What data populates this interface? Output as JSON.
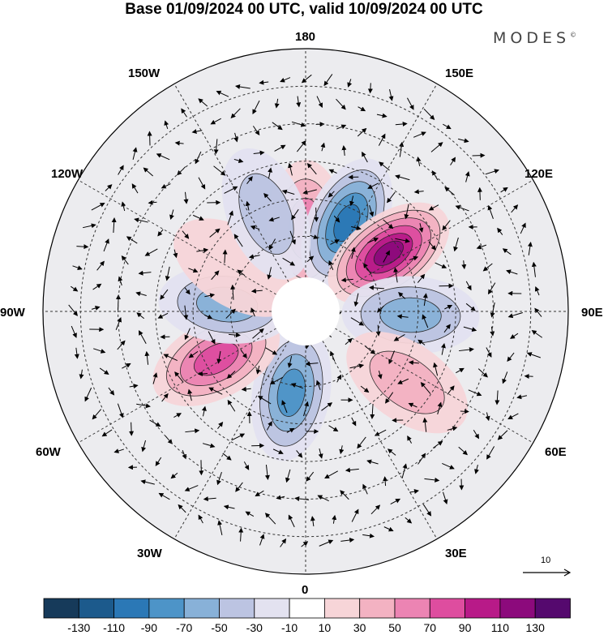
{
  "title": "Base 01/09/2024 00 UTC, valid 10/09/2024 00 UTC",
  "brand": {
    "name": "MODES",
    "mark": "©"
  },
  "longitude_labels": {
    "top": "180",
    "top_left": "150W",
    "top_right": "150E",
    "upper_left": "120W",
    "upper_right": "120E",
    "left": "90W",
    "right": "90E",
    "lower_left": "60W",
    "lower_right": "60E",
    "bottom_left": "30W",
    "bottom_right": "30E",
    "bottom": "0"
  },
  "reference_vector": {
    "label": "10"
  },
  "colorbar": {
    "colors": [
      "#163a5a",
      "#1c5a8c",
      "#2b78b6",
      "#4d94c8",
      "#88b1d8",
      "#bcc4e2",
      "#e3e2f0",
      "#ffffff",
      "#f7d5d8",
      "#f3b2c2",
      "#ec84b3",
      "#de4d9f",
      "#b81a88",
      "#8c0a7c",
      "#55096e"
    ],
    "tick_labels": [
      "-130",
      "-110",
      "-90",
      "-70",
      "-50",
      "-30",
      "-10",
      "10",
      "30",
      "50",
      "70",
      "90",
      "110",
      "130"
    ]
  },
  "anomalies": [
    {
      "name": "pos-180",
      "value": 60,
      "lon": 180,
      "colat": 22
    },
    {
      "name": "neg-160E",
      "value": -100,
      "lon": 155,
      "colat": 26
    },
    {
      "name": "pos-130E",
      "value": 120,
      "lon": 125,
      "colat": 27
    },
    {
      "name": "neg-90E",
      "value": -75,
      "lon": 88,
      "colat": 28
    },
    {
      "name": "pos-60E",
      "value": 45,
      "lon": 55,
      "colat": 33
    },
    {
      "name": "neg-15W",
      "value": -80,
      "lon": -10,
      "colat": 22
    },
    {
      "name": "pos-60W",
      "value": 90,
      "lon": -62,
      "colat": 27
    },
    {
      "name": "neg-90W",
      "value": -70,
      "lon": -95,
      "colat": 21
    },
    {
      "name": "pos-120W",
      "value": 30,
      "lon": -122,
      "colat": 22
    },
    {
      "name": "neg-155W",
      "value": -45,
      "lon": -158,
      "colat": 28
    }
  ]
}
